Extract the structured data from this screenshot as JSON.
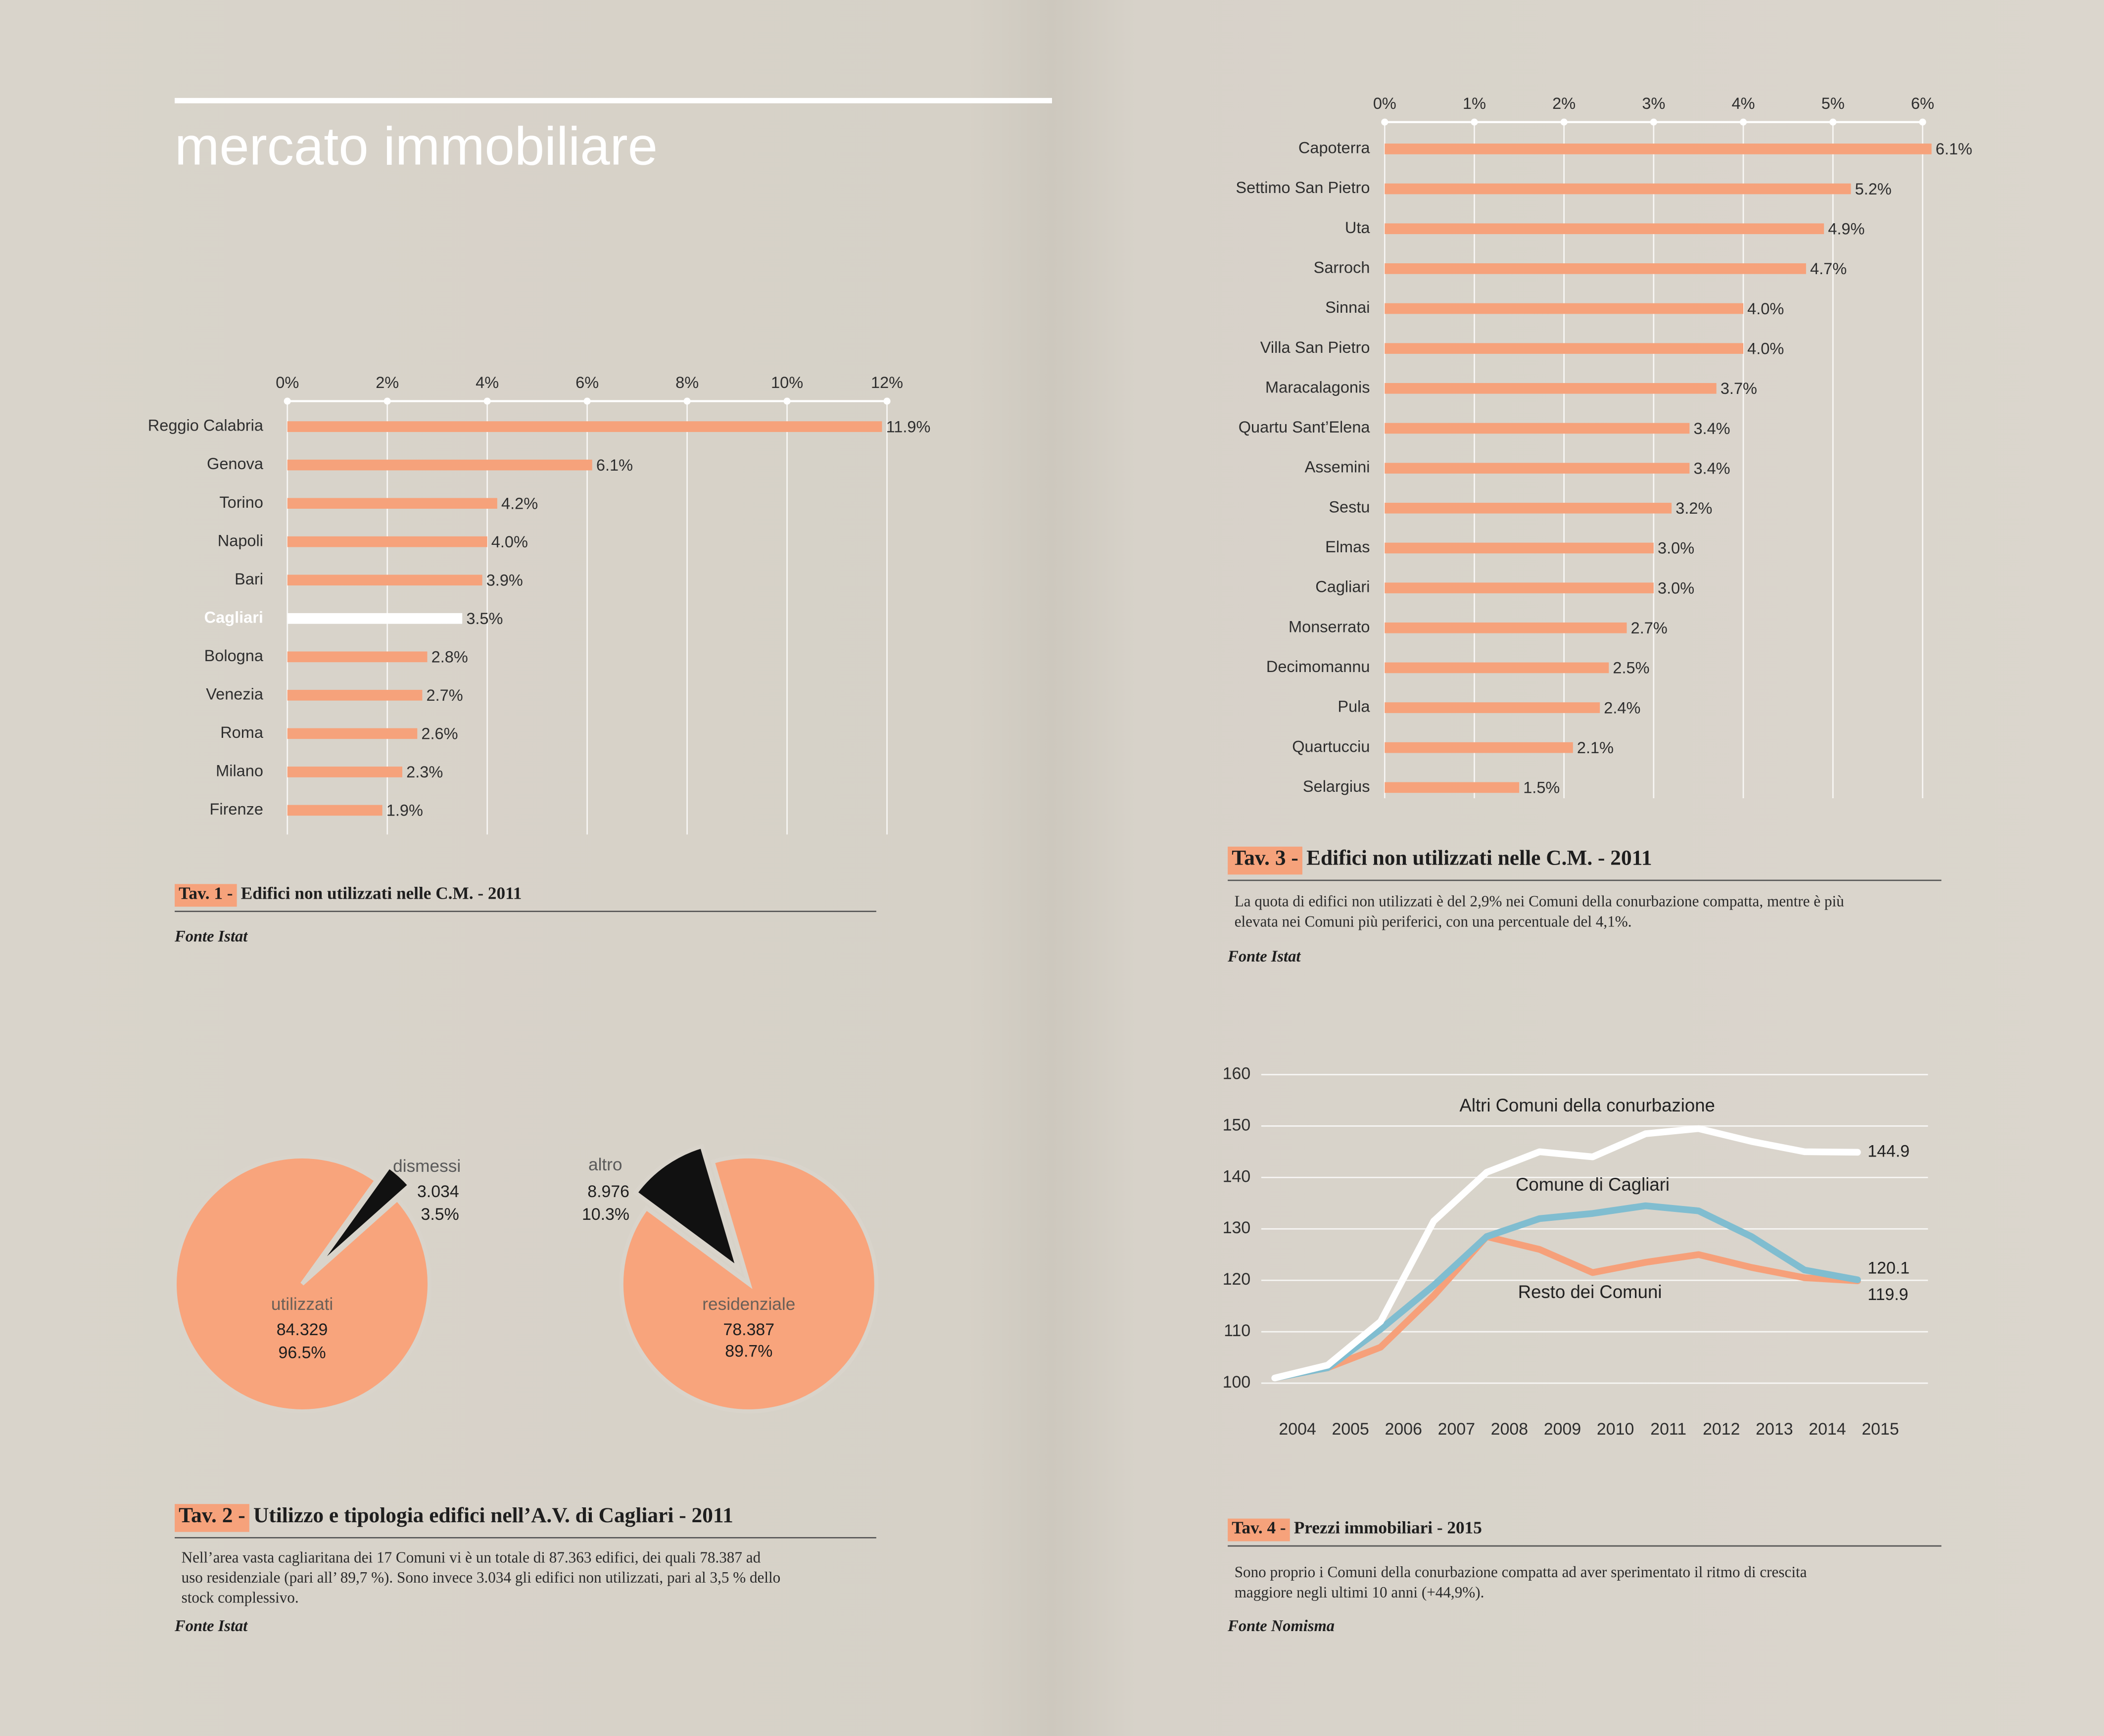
{
  "header": {
    "title": "mercato immobiliare"
  },
  "chart_data": [
    {
      "type": "hbar",
      "tag": "Tav. 1 -",
      "title": "Edifici non utilizzati nelle C.M. - 2011",
      "source": "Fonte Istat",
      "categories": [
        "Reggio Calabria",
        "Genova",
        "Torino",
        "Napoli",
        "Bari",
        "Cagliari",
        "Bologna",
        "Venezia",
        "Roma",
        "Milano",
        "Firenze"
      ],
      "values": [
        11.9,
        6.1,
        4.2,
        4.0,
        3.9,
        3.5,
        2.8,
        2.7,
        2.6,
        2.3,
        1.9
      ],
      "value_labels": [
        "11.9%",
        "6.1%",
        "4.2%",
        "4.0%",
        "3.9%",
        "3.5%",
        "2.8%",
        "2.7%",
        "2.6%",
        "2.3%",
        "1.9%"
      ],
      "color": "#f6a27b",
      "colors": [
        "#f6a27b",
        "#f6a27b",
        "#f6a27b",
        "#f6a27b",
        "#f6a27b",
        "#ffffff",
        "#f6a27b",
        "#f6a27b",
        "#f6a27b",
        "#f6a27b",
        "#f6a27b"
      ],
      "xlim": [
        0,
        12
      ],
      "xticks": [
        {
          "value": 0,
          "label": "0%"
        },
        {
          "value": 2,
          "label": "2%"
        },
        {
          "value": 4,
          "label": "4%"
        },
        {
          "value": 6,
          "label": "6%"
        },
        {
          "value": 8,
          "label": "8%"
        },
        {
          "value": 10,
          "label": "10%"
        },
        {
          "value": 12,
          "label": "12%"
        }
      ],
      "grid": true
    },
    {
      "type": "pie",
      "tag": "Tav. 2 -",
      "title": "Utilizzo e tipologia edifici nell’A.V. di Cagliari - 2011",
      "source": "Fonte Istat",
      "note": [
        "Nell’area vasta cagliaritana dei 17 Comuni vi è un totale di 87.363 edifici, dei quali 78.387 ad",
        "uso residenziale (pari all’ 89,7 %). Sono invece 3.034 gli edifici non utilizzati, pari al 3,5 % dello",
        "stock complessivo."
      ],
      "pies": [
        {
          "categories": [
            "utilizzati",
            "dismessi"
          ],
          "values": [
            96.5,
            3.5
          ],
          "value_labels": [
            "96.5%",
            "3.5%"
          ],
          "counts": [
            84329,
            3034
          ],
          "count_labels": [
            "84.329",
            "3.034"
          ],
          "colors": [
            "#f8a47c",
            "#111111"
          ]
        },
        {
          "categories": [
            "residenziale",
            "altro"
          ],
          "values": [
            89.7,
            10.3
          ],
          "value_labels": [
            "89.7%",
            "10.3%"
          ],
          "counts": [
            78387,
            8976
          ],
          "count_labels": [
            "78.387",
            "8.976"
          ],
          "colors": [
            "#f8a47c",
            "#111111"
          ]
        }
      ]
    },
    {
      "type": "hbar",
      "tag": "Tav. 3 -",
      "title": "Edifici non utilizzati nelle C.M. - 2011",
      "source": "Fonte Istat",
      "note": [
        "La quota di edifici non utilizzati è del 2,9% nei Comuni della conurbazione compatta, mentre è più",
        "elevata nei Comuni più periferici, con una percentuale del 4,1%."
      ],
      "categories": [
        "Capoterra",
        "Settimo San Pietro",
        "Uta",
        "Sarroch",
        "Sinnai",
        "Villa San Pietro",
        "Maracalagonis",
        "Quartu Sant’Elena",
        "Assemini",
        "Sestu",
        "Elmas",
        "Cagliari",
        "Monserrato",
        "Decimomannu",
        "Pula",
        "Quartucciu",
        "Selargius"
      ],
      "values": [
        6.1,
        5.2,
        4.9,
        4.7,
        4.0,
        4.0,
        3.7,
        3.4,
        3.4,
        3.2,
        3.0,
        3.0,
        2.7,
        2.5,
        2.4,
        2.1,
        1.5
      ],
      "value_labels": [
        "6.1%",
        "5.2%",
        "4.9%",
        "4.7%",
        "4.0%",
        "4.0%",
        "3.7%",
        "3.4%",
        "3.4%",
        "3.2%",
        "3.0%",
        "3.0%",
        "2.7%",
        "2.5%",
        "2.4%",
        "2.1%",
        "1.5%"
      ],
      "color": "#f6a27b",
      "xlim": [
        0,
        6
      ],
      "xticks": [
        {
          "value": 0,
          "label": "0%"
        },
        {
          "value": 1,
          "label": "1%"
        },
        {
          "value": 2,
          "label": "2%"
        },
        {
          "value": 3,
          "label": "3%"
        },
        {
          "value": 4,
          "label": "4%"
        },
        {
          "value": 5,
          "label": "5%"
        },
        {
          "value": 6,
          "label": "6%"
        }
      ],
      "grid": true
    },
    {
      "type": "line",
      "tag": "Tav. 4 -",
      "title": "Prezzi immobiliari - 2015",
      "source": "Fonte Nomisma",
      "note": [
        "Sono proprio i Comuni della conurbazione compatta ad aver sperimentato il ritmo di crescita",
        "maggiore negli ultimi 10 anni (+44,9%)."
      ],
      "categories": [
        "2004",
        "2005",
        "2006",
        "2007",
        "2008",
        "2009",
        "2010",
        "2011",
        "2012",
        "2013",
        "2014",
        "2015"
      ],
      "ylim": [
        100,
        160
      ],
      "yticks": [
        100,
        110,
        120,
        130,
        140,
        150,
        160
      ],
      "grid": true,
      "series": [
        {
          "name": "Altri Comuni della conurbazione",
          "color": "#ffffff",
          "values": [
            101,
            103.5,
            112,
            131.5,
            141,
            145,
            144,
            148.5,
            149.5,
            147,
            145,
            144.9
          ]
        },
        {
          "name": "Comune di Cagliari",
          "color": "#80bdd0",
          "values": [
            101,
            103,
            110.5,
            119,
            128.5,
            132,
            133,
            134.5,
            133.5,
            128.5,
            122,
            120.1
          ]
        },
        {
          "name": "Resto dei Comuni",
          "color": "#f6a07a",
          "values": [
            101,
            103,
            107,
            117,
            128.5,
            126,
            121.5,
            123.5,
            125,
            122.5,
            120.5,
            119.9
          ]
        }
      ]
    }
  ]
}
